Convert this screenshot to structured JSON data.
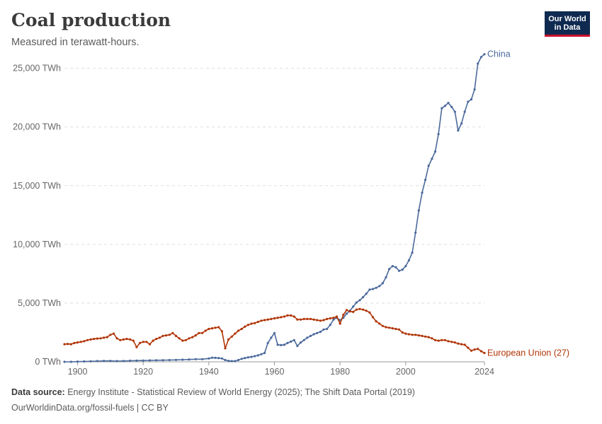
{
  "header": {
    "title": "Coal production",
    "subtitle": "Measured in terawatt-hours.",
    "logo_line1": "Our World",
    "logo_line2": "in Data"
  },
  "footer": {
    "source_label": "Data source:",
    "source_text": "Energy Institute - Statistical Review of World Energy (2025); The Shift Data Portal (2019)",
    "url_text": "OurWorldinData.org/fossil-fuels | CC BY"
  },
  "chart_data": {
    "type": "line",
    "title": "Coal production",
    "subtitle": "Measured in terawatt-hours.",
    "xlabel": "",
    "ylabel": "",
    "xlim": [
      1896,
      2024
    ],
    "ylim": [
      0,
      26000
    ],
    "grid": "horizontal dashed",
    "legend": "inline labels at line ends (right)",
    "x_ticks": [
      {
        "value": 1900,
        "label": "1900"
      },
      {
        "value": 1920,
        "label": "1920"
      },
      {
        "value": 1940,
        "label": "1940"
      },
      {
        "value": 1960,
        "label": "1960"
      },
      {
        "value": 1980,
        "label": "1980"
      },
      {
        "value": 2000,
        "label": "2000"
      },
      {
        "value": 2024,
        "label": "2024"
      }
    ],
    "y_ticks": [
      {
        "value": 0,
        "label": "0 TWh"
      },
      {
        "value": 5000,
        "label": "5,000 TWh"
      },
      {
        "value": 10000,
        "label": "10,000 TWh"
      },
      {
        "value": 15000,
        "label": "15,000 TWh"
      },
      {
        "value": 20000,
        "label": "20,000 TWh"
      },
      {
        "value": 25000,
        "label": "25,000 TWh"
      }
    ],
    "series": [
      {
        "name": "China",
        "color": "#4c6a9c",
        "points": [
          [
            1896,
            0
          ],
          [
            1898,
            0
          ],
          [
            1900,
            20
          ],
          [
            1902,
            30
          ],
          [
            1904,
            40
          ],
          [
            1906,
            60
          ],
          [
            1908,
            80
          ],
          [
            1910,
            80
          ],
          [
            1912,
            60
          ],
          [
            1914,
            70
          ],
          [
            1916,
            90
          ],
          [
            1918,
            100
          ],
          [
            1920,
            110
          ],
          [
            1922,
            120
          ],
          [
            1924,
            130
          ],
          [
            1926,
            140
          ],
          [
            1928,
            150
          ],
          [
            1930,
            160
          ],
          [
            1932,
            180
          ],
          [
            1934,
            200
          ],
          [
            1936,
            220
          ],
          [
            1938,
            220
          ],
          [
            1940,
            280
          ],
          [
            1941,
            350
          ],
          [
            1942,
            340
          ],
          [
            1943,
            320
          ],
          [
            1944,
            280
          ],
          [
            1945,
            150
          ],
          [
            1946,
            80
          ],
          [
            1947,
            60
          ],
          [
            1948,
            60
          ],
          [
            1949,
            150
          ],
          [
            1950,
            250
          ],
          [
            1951,
            320
          ],
          [
            1952,
            380
          ],
          [
            1953,
            420
          ],
          [
            1954,
            480
          ],
          [
            1955,
            550
          ],
          [
            1956,
            650
          ],
          [
            1957,
            750
          ],
          [
            1958,
            1600
          ],
          [
            1959,
            2050
          ],
          [
            1960,
            2450
          ],
          [
            1961,
            1450
          ],
          [
            1962,
            1420
          ],
          [
            1963,
            1450
          ],
          [
            1964,
            1600
          ],
          [
            1965,
            1720
          ],
          [
            1966,
            1850
          ],
          [
            1967,
            1350
          ],
          [
            1968,
            1650
          ],
          [
            1969,
            1850
          ],
          [
            1970,
            2050
          ],
          [
            1971,
            2200
          ],
          [
            1972,
            2350
          ],
          [
            1973,
            2450
          ],
          [
            1974,
            2550
          ],
          [
            1975,
            2750
          ],
          [
            1976,
            2800
          ],
          [
            1977,
            3150
          ],
          [
            1978,
            3600
          ],
          [
            1979,
            3750
          ],
          [
            1980,
            3550
          ],
          [
            1981,
            3750
          ],
          [
            1982,
            4100
          ],
          [
            1983,
            4350
          ],
          [
            1984,
            4700
          ],
          [
            1985,
            5050
          ],
          [
            1986,
            5250
          ],
          [
            1987,
            5500
          ],
          [
            1988,
            5800
          ],
          [
            1989,
            6150
          ],
          [
            1990,
            6200
          ],
          [
            1991,
            6300
          ],
          [
            1992,
            6450
          ],
          [
            1993,
            6700
          ],
          [
            1994,
            7200
          ],
          [
            1995,
            7900
          ],
          [
            1996,
            8150
          ],
          [
            1997,
            8050
          ],
          [
            1998,
            7750
          ],
          [
            1999,
            7850
          ],
          [
            2000,
            8150
          ],
          [
            2001,
            8650
          ],
          [
            2002,
            9300
          ],
          [
            2003,
            11000
          ],
          [
            2004,
            12900
          ],
          [
            2005,
            14400
          ],
          [
            2006,
            15500
          ],
          [
            2007,
            16700
          ],
          [
            2008,
            17300
          ],
          [
            2009,
            17900
          ],
          [
            2010,
            19400
          ],
          [
            2011,
            21600
          ],
          [
            2012,
            21800
          ],
          [
            2013,
            22050
          ],
          [
            2014,
            21700
          ],
          [
            2015,
            21300
          ],
          [
            2016,
            19700
          ],
          [
            2017,
            20300
          ],
          [
            2018,
            21300
          ],
          [
            2019,
            22150
          ],
          [
            2020,
            22350
          ],
          [
            2021,
            23200
          ],
          [
            2022,
            25400
          ],
          [
            2023,
            25950
          ],
          [
            2024,
            26200
          ]
        ]
      },
      {
        "name": "European Union (27)",
        "color": "#b13507",
        "points": [
          [
            1896,
            1500
          ],
          [
            1897,
            1520
          ],
          [
            1898,
            1500
          ],
          [
            1899,
            1600
          ],
          [
            1900,
            1650
          ],
          [
            1901,
            1700
          ],
          [
            1902,
            1750
          ],
          [
            1903,
            1850
          ],
          [
            1904,
            1900
          ],
          [
            1905,
            1950
          ],
          [
            1906,
            1980
          ],
          [
            1907,
            2000
          ],
          [
            1908,
            2050
          ],
          [
            1909,
            2100
          ],
          [
            1910,
            2300
          ],
          [
            1911,
            2400
          ],
          [
            1912,
            2000
          ],
          [
            1913,
            1850
          ],
          [
            1914,
            1900
          ],
          [
            1915,
            1950
          ],
          [
            1916,
            1900
          ],
          [
            1917,
            1800
          ],
          [
            1918,
            1250
          ],
          [
            1919,
            1600
          ],
          [
            1920,
            1700
          ],
          [
            1921,
            1700
          ],
          [
            1922,
            1500
          ],
          [
            1923,
            1800
          ],
          [
            1924,
            1950
          ],
          [
            1925,
            2050
          ],
          [
            1926,
            2200
          ],
          [
            1927,
            2250
          ],
          [
            1928,
            2300
          ],
          [
            1929,
            2450
          ],
          [
            1930,
            2200
          ],
          [
            1931,
            2000
          ],
          [
            1932,
            1800
          ],
          [
            1933,
            1850
          ],
          [
            1934,
            2000
          ],
          [
            1935,
            2100
          ],
          [
            1936,
            2250
          ],
          [
            1937,
            2450
          ],
          [
            1938,
            2450
          ],
          [
            1939,
            2650
          ],
          [
            1940,
            2800
          ],
          [
            1941,
            2850
          ],
          [
            1942,
            2900
          ],
          [
            1943,
            2950
          ],
          [
            1944,
            2600
          ],
          [
            1945,
            1150
          ],
          [
            1946,
            1900
          ],
          [
            1947,
            2150
          ],
          [
            1948,
            2400
          ],
          [
            1949,
            2650
          ],
          [
            1950,
            2800
          ],
          [
            1951,
            3000
          ],
          [
            1952,
            3150
          ],
          [
            1953,
            3250
          ],
          [
            1954,
            3300
          ],
          [
            1955,
            3400
          ],
          [
            1956,
            3500
          ],
          [
            1957,
            3550
          ],
          [
            1958,
            3600
          ],
          [
            1959,
            3650
          ],
          [
            1960,
            3700
          ],
          [
            1961,
            3750
          ],
          [
            1962,
            3800
          ],
          [
            1963,
            3850
          ],
          [
            1964,
            3950
          ],
          [
            1965,
            3950
          ],
          [
            1966,
            3850
          ],
          [
            1967,
            3600
          ],
          [
            1968,
            3600
          ],
          [
            1969,
            3650
          ],
          [
            1970,
            3650
          ],
          [
            1971,
            3650
          ],
          [
            1972,
            3600
          ],
          [
            1973,
            3550
          ],
          [
            1974,
            3500
          ],
          [
            1975,
            3550
          ],
          [
            1976,
            3650
          ],
          [
            1977,
            3700
          ],
          [
            1978,
            3750
          ],
          [
            1979,
            3850
          ],
          [
            1980,
            3250
          ],
          [
            1981,
            4000
          ],
          [
            1982,
            4400
          ],
          [
            1983,
            4300
          ],
          [
            1984,
            4250
          ],
          [
            1985,
            4450
          ],
          [
            1986,
            4500
          ],
          [
            1987,
            4450
          ],
          [
            1988,
            4350
          ],
          [
            1989,
            4200
          ],
          [
            1990,
            3800
          ],
          [
            1991,
            3450
          ],
          [
            1992,
            3250
          ],
          [
            1993,
            3050
          ],
          [
            1994,
            2950
          ],
          [
            1995,
            2900
          ],
          [
            1996,
            2850
          ],
          [
            1997,
            2800
          ],
          [
            1998,
            2750
          ],
          [
            1999,
            2500
          ],
          [
            2000,
            2400
          ],
          [
            2001,
            2350
          ],
          [
            2002,
            2300
          ],
          [
            2003,
            2300
          ],
          [
            2004,
            2250
          ],
          [
            2005,
            2200
          ],
          [
            2006,
            2150
          ],
          [
            2007,
            2100
          ],
          [
            2008,
            2000
          ],
          [
            2009,
            1850
          ],
          [
            2010,
            1800
          ],
          [
            2011,
            1850
          ],
          [
            2012,
            1850
          ],
          [
            2013,
            1750
          ],
          [
            2014,
            1700
          ],
          [
            2015,
            1650
          ],
          [
            2016,
            1550
          ],
          [
            2017,
            1500
          ],
          [
            2018,
            1450
          ],
          [
            2019,
            1200
          ],
          [
            2020,
            950
          ],
          [
            2021,
            1050
          ],
          [
            2022,
            1100
          ],
          [
            2023,
            900
          ],
          [
            2024,
            750
          ]
        ]
      }
    ]
  }
}
